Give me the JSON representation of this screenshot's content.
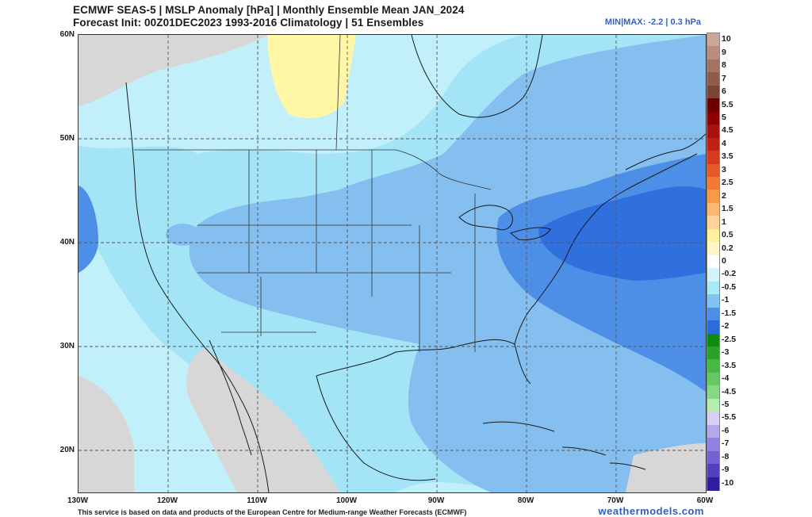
{
  "header": {
    "line1": "ECMWF SEAS-5 | MSLP Anomaly [hPa] | Monthly Ensemble Mean JAN_2024",
    "line2": "Forecast Init: 00Z01DEC2023    1993-2016 Climatology | 51 Ensembles",
    "minmax": "MIN|MAX: -2.2 | 0.3 hPa"
  },
  "axes": {
    "lat_labels": [
      "60N",
      "50N",
      "40N",
      "30N",
      "20N"
    ],
    "lon_labels": [
      "130W",
      "120W",
      "110W",
      "100W",
      "90W",
      "80W",
      "70W",
      "60W"
    ]
  },
  "colorbar": {
    "labels": [
      "10",
      "9",
      "8",
      "7",
      "6",
      "5.5",
      "5",
      "4.5",
      "4",
      "3.5",
      "3",
      "2.5",
      "2",
      "1.5",
      "1",
      "0.5",
      "0.2",
      "0",
      "-0.2",
      "-0.5",
      "-1",
      "-1.5",
      "-2",
      "-2.5",
      "-3",
      "-3.5",
      "-4",
      "-4.5",
      "-5",
      "-5.5",
      "-6",
      "-7",
      "-8",
      "-9",
      "-10"
    ],
    "colors": [
      "#c7a89b",
      "#b68d7f",
      "#a37465",
      "#8e5b4c",
      "#7a4437",
      "#6a0000",
      "#8b0000",
      "#a81010",
      "#c02018",
      "#d43a20",
      "#e45a2a",
      "#f07a36",
      "#f79a48",
      "#fbb870",
      "#fdd49a",
      "#fbf29e",
      "#fff7c8",
      "#ffffff",
      "#d4f4fb",
      "#a9e9f8",
      "#7ec3f1",
      "#4d8fe6",
      "#2a6cdc",
      "#0b8a14",
      "#2aa22a",
      "#46b846",
      "#64c864",
      "#86d886",
      "#b4ecb4",
      "#d6d0f4",
      "#b4a8ec",
      "#9282e0",
      "#7262d2",
      "#5040bc",
      "#2c1ea0"
    ]
  },
  "legend_colors": {
    "land_no_anomaly": "#d7d7d7",
    "positive_0_2": "#fff7a6",
    "neg_0_2": "#c2f0fa",
    "neg_0_5": "#a3e4f6",
    "neg_1": "#84bff0",
    "neg_1_5": "#4d8fe6",
    "neg_2": "#2f6fde"
  },
  "footer": {
    "credit": "This service is based on data and products of the European Centre for Medium-range Weather Forecasts (ECMWF)",
    "site": "weathermodels.com"
  }
}
